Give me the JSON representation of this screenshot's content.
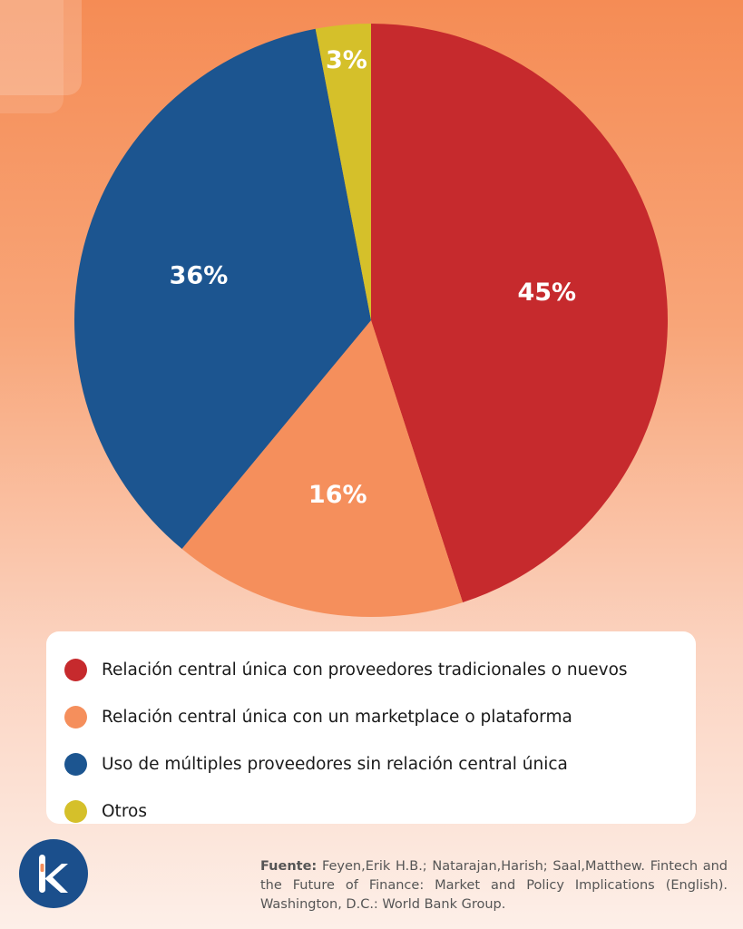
{
  "chart_data": {
    "type": "pie",
    "slices": [
      {
        "label": "Relación central única con proveedores tradicionales o nuevos",
        "value": 45,
        "display": "45%",
        "color": "#c62a2d"
      },
      {
        "label": "Relación central única con un marketplace o plataforma",
        "value": 16,
        "display": "16%",
        "color": "#f58f5c"
      },
      {
        "label": "Uso de múltiples proveedores sin relación central única",
        "value": 36,
        "display": "36%",
        "color": "#1c5590"
      },
      {
        "label": "Otros",
        "value": 3,
        "display": "3%",
        "color": "#d5c02a"
      }
    ],
    "legend_position": "bottom"
  },
  "source": {
    "label": "Fuente:",
    "text": "Feyen,Erik H.B.; Natarajan,Harish; Saal,Matthew. Fintech and the Future of Finance: Market and Policy Implications (English). Washington, D.C.: World Bank Group."
  },
  "logo": {
    "icon": "k-logo-icon",
    "color": "#1b4f8c"
  }
}
